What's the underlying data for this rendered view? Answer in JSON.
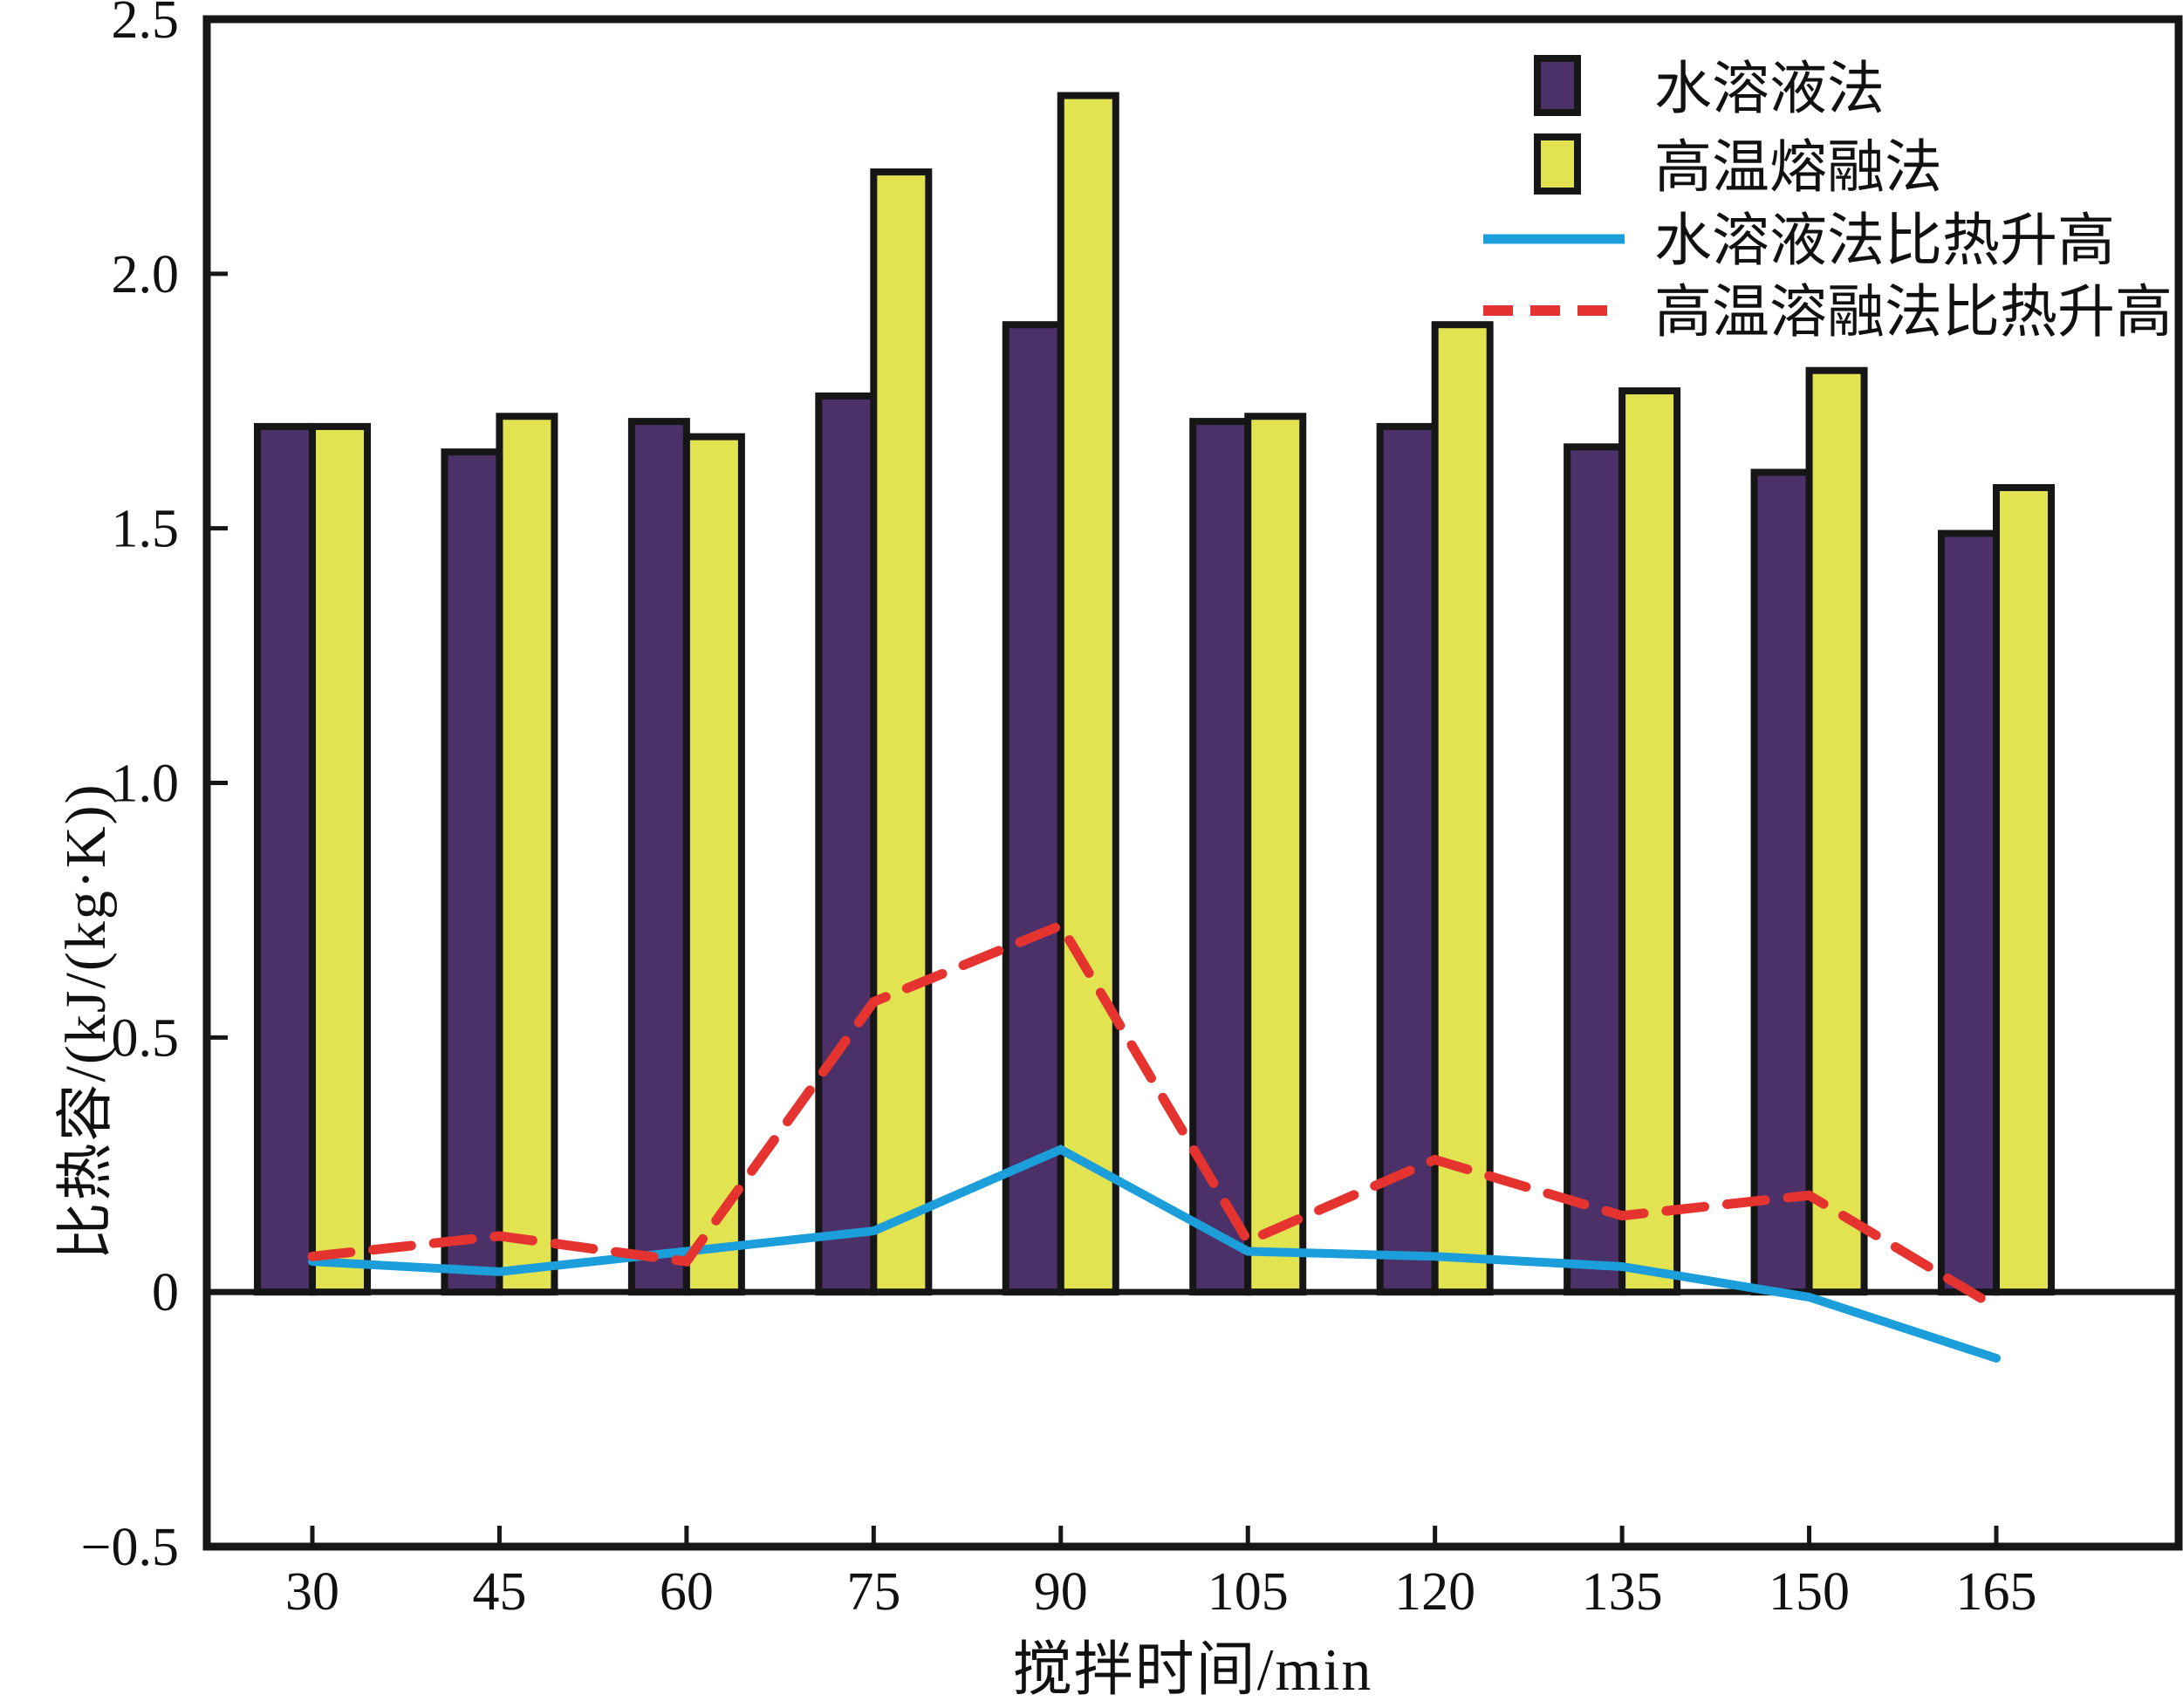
{
  "figure": {
    "background": "#ffffff",
    "axis_color": "#161616"
  },
  "chart_data": {
    "type": "bar+line",
    "title": "",
    "xlabel": "搅拌时间/min",
    "ylabel": "比热容/(kJ/(kg·K))",
    "categories": [
      "30",
      "45",
      "60",
      "75",
      "90",
      "105",
      "120",
      "135",
      "150",
      "165"
    ],
    "ylim": [
      -0.5,
      2.5
    ],
    "yticks": [
      {
        "label": "2.5",
        "value": 2.5
      },
      {
        "label": "2.0",
        "value": 2.0
      },
      {
        "label": "1.5",
        "value": 1.5
      },
      {
        "label": "1.0",
        "value": 1.0
      },
      {
        "label": "0.5",
        "value": 0.5
      },
      {
        "label": "0",
        "value": 0
      },
      {
        "label": "−0.5",
        "value": -0.5
      }
    ],
    "grid": false,
    "legend_position": "top-right-inside",
    "series": [
      {
        "name": "水溶液法",
        "type": "bar",
        "color": "#4b3168",
        "values": [
          1.7,
          1.65,
          1.71,
          1.76,
          1.9,
          1.71,
          1.7,
          1.66,
          1.61,
          1.49
        ]
      },
      {
        "name": "高温熔融法",
        "type": "bar",
        "color": "#e2e351",
        "values": [
          1.7,
          1.72,
          1.68,
          2.2,
          2.35,
          1.72,
          1.9,
          1.77,
          1.81,
          1.58
        ]
      },
      {
        "name": "水溶液法比热升高",
        "type": "line",
        "line_style": "solid",
        "color": "#1b9ed9",
        "values": [
          0.06,
          0.04,
          0.08,
          0.12,
          0.28,
          0.08,
          0.07,
          0.05,
          -0.01,
          -0.13
        ]
      },
      {
        "name": "高温溶融法比热升高",
        "type": "line",
        "line_style": "dashed",
        "color": "#e53430",
        "values": [
          0.07,
          0.11,
          0.06,
          0.57,
          0.72,
          0.1,
          0.26,
          0.15,
          0.19,
          -0.03
        ]
      }
    ]
  }
}
